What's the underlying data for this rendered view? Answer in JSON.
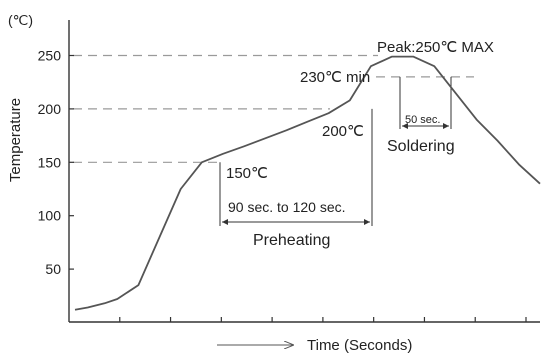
{
  "chart_data": {
    "type": "line",
    "title": "",
    "xlabel": "Time (Seconds)",
    "ylabel": "Temperature",
    "y_unit": "(℃)",
    "ylim": [
      0,
      270
    ],
    "y_ticks": [
      50,
      100,
      150,
      200,
      250
    ],
    "x_tick_count": 9,
    "grid": false,
    "series": [
      {
        "x": [
          0,
          3,
          7,
          10,
          15,
          20,
          25,
          30,
          35,
          40,
          50,
          55,
          60,
          65,
          70,
          75,
          80,
          85,
          90,
          95,
          100,
          105,
          110
        ],
        "values": [
          12,
          14,
          18,
          22,
          35,
          80,
          125,
          150,
          158,
          165,
          180,
          188,
          196,
          208,
          240,
          249,
          249,
          240,
          215,
          190,
          170,
          148,
          130
        ]
      }
    ],
    "reference_lines": [
      {
        "y": 250,
        "color": "#9a9a9a",
        "dash": true
      },
      {
        "y": 230,
        "color": "#9a9a9a",
        "dash": true
      },
      {
        "y": 200,
        "color": "#9a9a9a",
        "dash": true
      },
      {
        "y": 150,
        "color": "#9a9a9a",
        "dash": true
      }
    ],
    "annotations": {
      "peak": "Peak:250℃ MAX",
      "min230": "230℃ min",
      "t200": "200℃",
      "t150": "150℃",
      "preheat_duration": "90 sec. to 120 sec.",
      "preheat_label": "Preheating",
      "solder_duration": "50 sec.",
      "solder_label": "Soldering"
    },
    "line_color": "#555555",
    "axis_color": "#333333"
  }
}
